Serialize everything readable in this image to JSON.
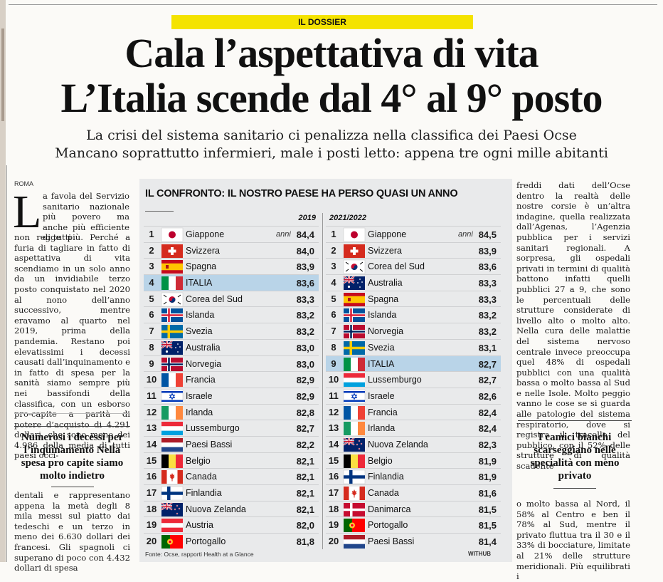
{
  "section_label": "IL DOSSIER",
  "headline_line1": "Cala l’aspettativa di vita",
  "headline_line2": "L’Italia scende dal 4° al 9° posto",
  "subheadline_line1": "La crisi del sistema sanitario ci penalizza nella classifica dei Paesi Ocse",
  "subheadline_line2": "Mancano soprattutto infermieri, male i posti letto: appena tre ogni mille abitanti",
  "dateline": "ROMA",
  "dropcap": "L",
  "col1_a": "a favola del Servizio sanitario nazionale più povero ma anche più efficiente di tutti",
  "col1_b": "non regge più. Perché a furia di tagliare in fatto di aspettativa di vita scendiamo in un solo anno da un invidiabile terzo posto conquistato nel 2020 al nono dell’anno successivo, mentre eravamo al quarto nel 2019, prima della pandemia. Restano poi elevatissimi i decessi causati dall’inquinamento e in fatto di spesa per la sanità siamo sempre più nei bassifondi della classifica, con un esborso pro-capite a parità di potere d’acquisto di 4.291 dollari, che sono meno dei 4.986 della media di tutti paesi occi-",
  "pull_quote_1": "Numerosi i decessi per l’inquinamento Nella spesa pro capite siamo molto indietro",
  "col1_c": "dentali e rappresentano appena la metà degli 8 mila messi sul piatto dai tedeschi e un terzo in meno dei 6.630 dollari dei francesi. Gli spagnoli ci superano di poco con 4.432 dollari di spesa",
  "col3_a": "freddi dati dell’Ocse dentro la realtà delle nostre corsie è un’altra indagine, quella realizzata dall’Agenas, l’Agenzia pubblica per i servizi sanitari regionali. A sorpresa, gli ospedali privati in termini di qualità battono infatti quelli pubblici 27 a 9, che sono le percentuali delle strutture considerate di livello alto o molto alto. Nella cura delle malattie del sistema nervoso centrale invece preoccupa quel 48% di ospedali pubblici con una qualità bassa o molto bassa al Sud e nelle Isole. Molto peggio vanno le cose se si guarda alle patologie del sistema respiratorio, dove si registra il tracollo del pubblico, con il 52% delle strutture di qualità scadente",
  "pull_quote_2": "I camici bianchi scarseggiano nelle specialità con meno privato",
  "col3_b": "o molto bassa al Nord, il 58% al Centro e ben il 78% al Sud, mentre il privato fluttua tra il 30 e il 33% di bocciature, limitate al 21% delle strutture meridionali. Più equilibrati i",
  "colors": {
    "highlight_row": "#b9d4e8",
    "label_bg": "#f4e300",
    "box_bg": "#e9eaeb"
  },
  "chart_data": {
    "type": "table",
    "title": "IL CONFRONTO: IL NOSTRO PAESE HA PERSO QUASI UN ANNO",
    "unit_label": "anni",
    "highlight": "ITALIA",
    "source": "Fonte: Ocse, rapporti Health at a Glance",
    "credit": "WITHUB",
    "tables": [
      {
        "header": "2019",
        "rows": [
          {
            "rank": 1,
            "country": "Giappone",
            "flag": "japan",
            "value": "84,4"
          },
          {
            "rank": 2,
            "country": "Svizzera",
            "flag": "switzerland",
            "value": "84,0"
          },
          {
            "rank": 3,
            "country": "Spagna",
            "flag": "spain",
            "value": "83,9"
          },
          {
            "rank": 4,
            "country": "ITALIA",
            "flag": "italy",
            "value": "83,6"
          },
          {
            "rank": 5,
            "country": "Corea del Sud",
            "flag": "south-korea",
            "value": "83,3"
          },
          {
            "rank": 6,
            "country": "Islanda",
            "flag": "iceland",
            "value": "83,2"
          },
          {
            "rank": 7,
            "country": "Svezia",
            "flag": "sweden",
            "value": "83,2"
          },
          {
            "rank": 8,
            "country": "Australia",
            "flag": "australia",
            "value": "83,0"
          },
          {
            "rank": 9,
            "country": "Norvegia",
            "flag": "norway",
            "value": "83,0"
          },
          {
            "rank": 10,
            "country": "Francia",
            "flag": "france",
            "value": "82,9"
          },
          {
            "rank": 11,
            "country": "Israele",
            "flag": "israel",
            "value": "82,9"
          },
          {
            "rank": 12,
            "country": "Irlanda",
            "flag": "ireland",
            "value": "82,8"
          },
          {
            "rank": 13,
            "country": "Lussemburgo",
            "flag": "luxembourg",
            "value": "82,7"
          },
          {
            "rank": 14,
            "country": "Paesi Bassi",
            "flag": "netherlands",
            "value": "82,2"
          },
          {
            "rank": 15,
            "country": "Belgio",
            "flag": "belgium",
            "value": "82,1"
          },
          {
            "rank": 16,
            "country": "Canada",
            "flag": "canada",
            "value": "82,1"
          },
          {
            "rank": 17,
            "country": "Finlandia",
            "flag": "finland",
            "value": "82,1"
          },
          {
            "rank": 18,
            "country": "Nuova Zelanda",
            "flag": "new-zealand",
            "value": "82,1"
          },
          {
            "rank": 19,
            "country": "Austria",
            "flag": "austria",
            "value": "82,0"
          },
          {
            "rank": 20,
            "country": "Portogallo",
            "flag": "portugal",
            "value": "81,8"
          }
        ]
      },
      {
        "header": "2021/2022",
        "rows": [
          {
            "rank": 1,
            "country": "Giappone",
            "flag": "japan",
            "value": "84,5"
          },
          {
            "rank": 2,
            "country": "Svizzera",
            "flag": "switzerland",
            "value": "83,9"
          },
          {
            "rank": 3,
            "country": "Corea del Sud",
            "flag": "south-korea",
            "value": "83,6"
          },
          {
            "rank": 4,
            "country": "Australia",
            "flag": "australia",
            "value": "83,3"
          },
          {
            "rank": 5,
            "country": "Spagna",
            "flag": "spain",
            "value": "83,3"
          },
          {
            "rank": 6,
            "country": "Islanda",
            "flag": "iceland",
            "value": "83,2"
          },
          {
            "rank": 7,
            "country": "Norvegia",
            "flag": "norway",
            "value": "83,2"
          },
          {
            "rank": 8,
            "country": "Svezia",
            "flag": "sweden",
            "value": "83,1"
          },
          {
            "rank": 9,
            "country": "ITALIA",
            "flag": "italy",
            "value": "82,7"
          },
          {
            "rank": 10,
            "country": "Lussemburgo",
            "flag": "luxembourg",
            "value": "82,7"
          },
          {
            "rank": 11,
            "country": "Israele",
            "flag": "israel",
            "value": "82,6"
          },
          {
            "rank": 12,
            "country": "Francia",
            "flag": "france",
            "value": "82,4"
          },
          {
            "rank": 13,
            "country": "Irlanda",
            "flag": "ireland",
            "value": "82,4"
          },
          {
            "rank": 14,
            "country": "Nuova Zelanda",
            "flag": "new-zealand",
            "value": "82,3"
          },
          {
            "rank": 15,
            "country": "Belgio",
            "flag": "belgium",
            "value": "81,9"
          },
          {
            "rank": 16,
            "country": "Finlandia",
            "flag": "finland",
            "value": "81,9"
          },
          {
            "rank": 17,
            "country": "Canada",
            "flag": "canada",
            "value": "81,6"
          },
          {
            "rank": 18,
            "country": "Danimarca",
            "flag": "denmark",
            "value": "81,5"
          },
          {
            "rank": 19,
            "country": "Portogallo",
            "flag": "portugal",
            "value": "81,5"
          },
          {
            "rank": 20,
            "country": "Paesi Bassi",
            "flag": "netherlands",
            "value": "81,4"
          }
        ]
      }
    ]
  }
}
